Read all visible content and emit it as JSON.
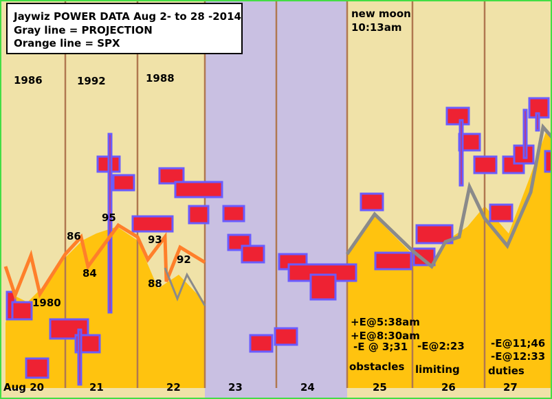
{
  "legend": {
    "lines": [
      "Jaywiz POWER DATA Aug 2- to 28 -2014",
      "Gray line = PROJECTION",
      "Orange line = SPX"
    ]
  },
  "years": [
    "1986",
    "1992",
    "1988",
    "1980"
  ],
  "point_labels": [
    "86",
    "84",
    "95",
    "93",
    "88",
    "92"
  ],
  "moon": [
    "new moon",
    "10:13am"
  ],
  "annotations": {
    "day25": [
      "+E@5:38am",
      "+E@8:30am",
      "-E @ 3;31",
      "obstacles"
    ],
    "day26": [
      "-E@2:23",
      "limiting"
    ],
    "day27": [
      "-E@11;46",
      "-E@12:33",
      "duties"
    ]
  },
  "days": [
    "Aug 20",
    "21",
    "22",
    "23",
    "24",
    "25",
    "26",
    "27"
  ]
}
